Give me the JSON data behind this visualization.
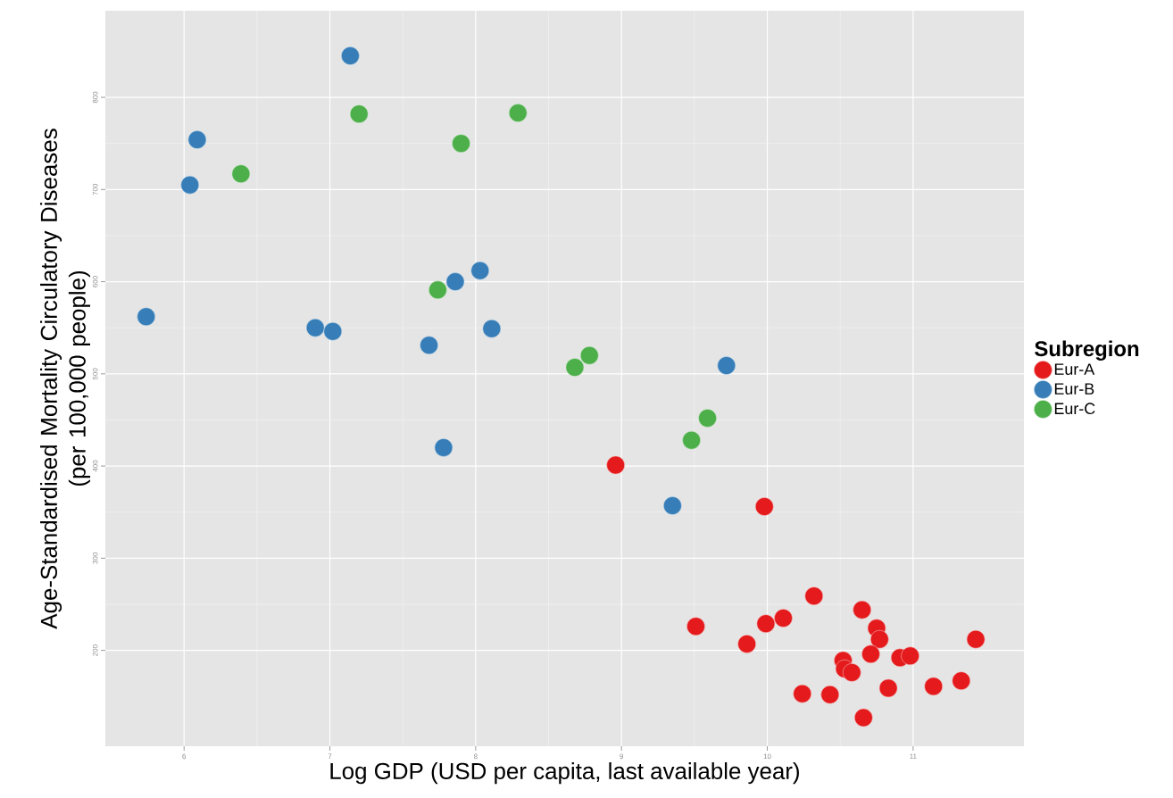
{
  "chart_data": {
    "type": "scatter",
    "xlabel": "Log GDP (USD per capita, last available year)",
    "ylabel": "Age-Standardised Mortality Circulatory Diseases\n(per 100,000 people)",
    "legend_title": "Subregion",
    "legend": "right",
    "marker": "circle",
    "grid": true,
    "xlim": [
      5.46,
      11.76
    ],
    "ylim": [
      96,
      894
    ],
    "xticks": [
      6,
      7,
      8,
      9,
      10,
      11
    ],
    "yticks": [
      200,
      300,
      400,
      500,
      600,
      700,
      800
    ],
    "series": [
      {
        "name": "Eur-A",
        "color": "#e41a1c",
        "x": [
          10.32,
          10.65,
          10.75,
          10.77,
          10.71,
          10.52,
          10.53,
          10.58,
          10.91,
          10.98,
          11.43,
          11.33,
          11.14,
          10.83,
          10.66,
          10.43,
          10.24,
          9.98,
          8.96,
          9.51,
          9.86,
          9.99,
          10.11
        ],
        "values": [
          259,
          244,
          224,
          212,
          196,
          189,
          180,
          176,
          192,
          194,
          212,
          167,
          161,
          159,
          127,
          152,
          153,
          356,
          401,
          226,
          207,
          229,
          235
        ]
      },
      {
        "name": "Eur-B",
        "color": "#377eb8",
        "x": [
          7.14,
          6.09,
          6.04,
          5.74,
          6.9,
          7.02,
          7.68,
          7.86,
          8.03,
          8.11,
          7.78,
          9.72,
          9.35
        ],
        "values": [
          845,
          754,
          705,
          562,
          550,
          546,
          531,
          600,
          612,
          549,
          420,
          509,
          357
        ]
      },
      {
        "name": "Eur-C",
        "color": "#4daf4a",
        "x": [
          6.39,
          7.2,
          7.9,
          8.29,
          7.74,
          8.68,
          8.78,
          9.59,
          9.48
        ],
        "values": [
          717,
          782,
          750,
          783,
          591,
          507,
          520,
          452,
          428
        ]
      }
    ]
  }
}
